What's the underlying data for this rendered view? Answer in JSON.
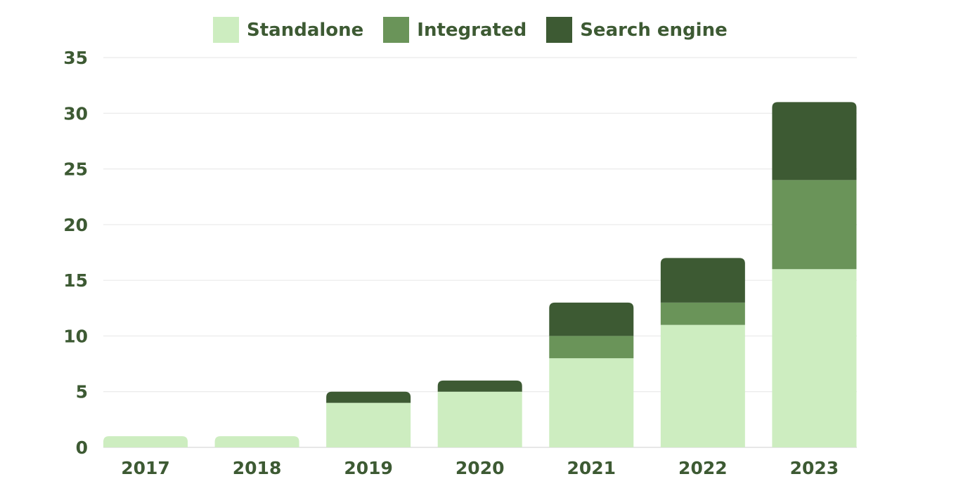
{
  "chart_data": {
    "type": "bar",
    "stacked": true,
    "title": "",
    "xlabel": "",
    "ylabel": "",
    "categories": [
      "2017",
      "2018",
      "2019",
      "2020",
      "2021",
      "2022",
      "2023"
    ],
    "series": [
      {
        "name": "Standalone",
        "color": "#cdedc0",
        "values": [
          1,
          1,
          4,
          5,
          8,
          11,
          16
        ]
      },
      {
        "name": "Integrated",
        "color": "#6a9459",
        "values": [
          0,
          0,
          0,
          0,
          2,
          2,
          8
        ]
      },
      {
        "name": "Search engine",
        "color": "#3d5a33",
        "values": [
          0,
          0,
          1,
          1,
          3,
          4,
          7
        ]
      }
    ],
    "ylim": [
      0,
      35
    ],
    "yticks": [
      0,
      5,
      10,
      15,
      20,
      25,
      30,
      35
    ],
    "grid": true,
    "legend_position": "top",
    "text_color": "#3d5a33"
  }
}
